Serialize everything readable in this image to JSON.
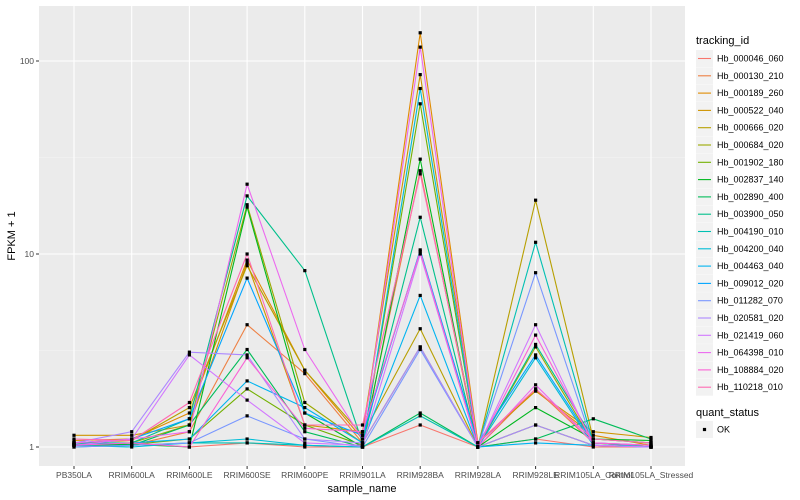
{
  "chart_data": {
    "type": "line",
    "title": "",
    "xlabel": "sample_name",
    "ylabel": "FPKM + 1",
    "y_scale": "log10",
    "ylim": [
      0.95,
      170
    ],
    "y_ticks": [
      {
        "value": 1,
        "label": "1"
      },
      {
        "value": 10,
        "label": "10"
      },
      {
        "value": 100,
        "label": "100"
      }
    ],
    "categories": [
      "PB350LA",
      "RRIM600LA",
      "RRIM600LE",
      "RRIM600SE",
      "RRIM600PE",
      "RRIM901LA",
      "RRIM928BA",
      "RRIM928LA",
      "RRIM928LE",
      "RRIM105LA_Control",
      "RRIM105LA_Stressed"
    ],
    "category_labels": [
      "PB350LA",
      "RRIM600LA",
      "RRIM600LE",
      "RRIM600SE",
      "RRIM600PE",
      "RRIM901LA",
      "RRIM928BA",
      "RRIM928LA",
      "RRIM928LE",
      "RRIM105LA_Control",
      "RRIM105LA_Stressed"
    ],
    "grid": true,
    "legend_position": "right",
    "legend_title": "tracking_id",
    "shape_legend": {
      "title": "quant_status",
      "entries": [
        "OK"
      ]
    },
    "series": [
      {
        "name": "Hb_000046_060",
        "color": "#F8766D",
        "values": [
          1.02,
          1.05,
          1.0,
          1.05,
          1.0,
          1.0,
          1.3,
          1.0,
          1.1,
          1.0,
          1.0
        ]
      },
      {
        "name": "Hb_000130_210",
        "color": "#EE8043",
        "values": [
          1.03,
          1.02,
          1.2,
          4.3,
          2.4,
          1.05,
          27,
          1.0,
          2.0,
          1.05,
          1.0
        ]
      },
      {
        "name": "Hb_000189_260",
        "color": "#E08B00",
        "values": [
          1.08,
          1.1,
          1.5,
          9.3,
          2.5,
          1.1,
          140,
          1.05,
          1.95,
          1.15,
          1.02
        ]
      },
      {
        "name": "Hb_000522_040",
        "color": "#CF9400",
        "values": [
          1.15,
          1.15,
          1.3,
          9.0,
          1.3,
          1.2,
          85,
          1.05,
          1.95,
          1.2,
          1.12
        ]
      },
      {
        "name": "Hb_000666_020",
        "color": "#B79F00",
        "values": [
          1.05,
          1.08,
          1.6,
          8.7,
          2.5,
          1.15,
          4.1,
          1.0,
          19.0,
          1.1,
          1.05
        ]
      },
      {
        "name": "Hb_000684_020",
        "color": "#9AA800",
        "values": [
          1.03,
          1.05,
          1.3,
          18.0,
          1.7,
          1.05,
          3.3,
          1.0,
          3.3,
          1.05,
          1.0
        ]
      },
      {
        "name": "Hb_001902_180",
        "color": "#72B000",
        "values": [
          1.02,
          1.03,
          1.1,
          2.0,
          1.3,
          1.02,
          60,
          1.0,
          1.3,
          1.02,
          1.0
        ]
      },
      {
        "name": "Hb_002837_140",
        "color": "#00B81F",
        "values": [
          1.05,
          1.03,
          1.0,
          17.5,
          1.5,
          1.0,
          31,
          1.0,
          1.6,
          1.1,
          1.08
        ]
      },
      {
        "name": "Hb_002890_400",
        "color": "#00BC59",
        "values": [
          1.03,
          1.02,
          1.3,
          3.2,
          1.2,
          1.0,
          1.5,
          1.0,
          1.1,
          1.4,
          1.1
        ]
      },
      {
        "name": "Hb_003900_050",
        "color": "#00C08B",
        "values": [
          1.05,
          1.05,
          1.4,
          20.0,
          8.2,
          1.05,
          15.5,
          1.0,
          3.4,
          1.1,
          1.05
        ]
      },
      {
        "name": "Hb_004190_010",
        "color": "#00C0B2",
        "values": [
          1.0,
          1.02,
          1.05,
          1.05,
          1.02,
          1.0,
          1.45,
          1.0,
          11.5,
          1.05,
          1.0
        ]
      },
      {
        "name": "Hb_004200_040",
        "color": "#00BCD6",
        "values": [
          1.02,
          1.0,
          1.05,
          1.1,
          1.02,
          1.0,
          72,
          1.0,
          2.9,
          1.02,
          1.0
        ]
      },
      {
        "name": "Hb_004463_040",
        "color": "#00B4F0",
        "values": [
          1.03,
          1.05,
          1.1,
          2.2,
          1.6,
          1.05,
          6.1,
          1.0,
          1.05,
          1.02,
          1.0
        ]
      },
      {
        "name": "Hb_009012_020",
        "color": "#00A5FF",
        "values": [
          1.05,
          1.1,
          1.4,
          7.5,
          1.5,
          1.15,
          10.5,
          1.05,
          3.0,
          1.05,
          1.02
        ]
      },
      {
        "name": "Hb_011282_070",
        "color": "#7997FF",
        "values": [
          1.0,
          1.02,
          1.05,
          1.45,
          1.1,
          1.0,
          3.2,
          1.0,
          8.0,
          1.02,
          1.0
        ]
      },
      {
        "name": "Hb_020581_020",
        "color": "#AC88FF",
        "values": [
          1.05,
          1.2,
          3.1,
          3.0,
          1.1,
          1.05,
          3.3,
          1.0,
          1.3,
          1.02,
          1.0
        ]
      },
      {
        "name": "Hb_021419_060",
        "color": "#D277FF",
        "values": [
          1.02,
          1.1,
          3.0,
          1.75,
          1.05,
          1.02,
          10.0,
          1.0,
          4.3,
          1.02,
          1.0
        ]
      },
      {
        "name": "Hb_064398_010",
        "color": "#EC69EF",
        "values": [
          1.05,
          1.1,
          1.2,
          23.0,
          3.2,
          1.1,
          118,
          1.0,
          2.1,
          1.05,
          1.02
        ]
      },
      {
        "name": "Hb_108884_020",
        "color": "#FA62D5",
        "values": [
          1.02,
          1.05,
          1.0,
          2.9,
          1.25,
          1.2,
          10.3,
          1.0,
          3.8,
          1.05,
          1.02
        ]
      },
      {
        "name": "Hb_110218_010",
        "color": "#FF6AB2",
        "values": [
          1.1,
          1.08,
          1.7,
          10.0,
          1.3,
          1.3,
          26,
          1.05,
          2.0,
          1.1,
          1.05
        ]
      }
    ]
  }
}
